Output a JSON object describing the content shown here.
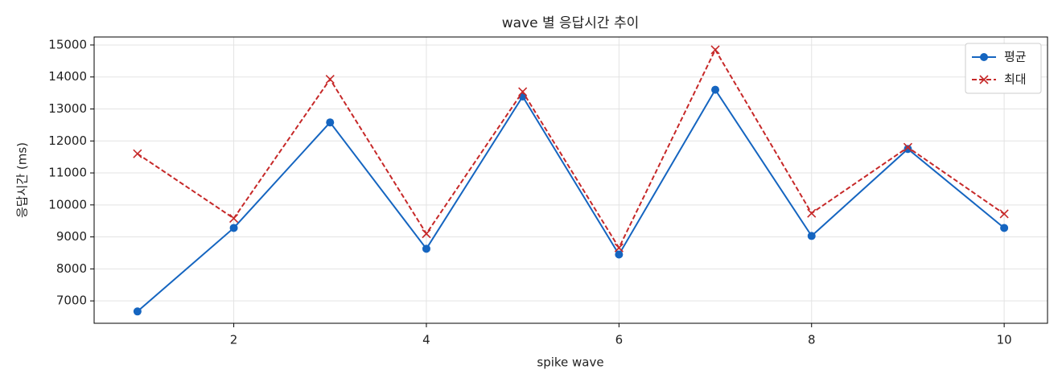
{
  "chart_data": {
    "type": "line",
    "title": "wave 별 응답시간 추이",
    "xlabel": "spike wave",
    "ylabel": "응답시간 (ms)",
    "x": [
      1,
      2,
      3,
      4,
      5,
      6,
      7,
      8,
      9,
      10
    ],
    "series": [
      {
        "name": "평균",
        "color": "#1565c0",
        "marker": "circle",
        "linestyle": "solid",
        "values": [
          6670,
          9280,
          12580,
          8630,
          13390,
          8450,
          13600,
          9030,
          11750,
          9280
        ]
      },
      {
        "name": "최대",
        "color": "#c62828",
        "marker": "x",
        "linestyle": "dashed",
        "values": [
          11600,
          9580,
          13930,
          9100,
          13540,
          8660,
          14850,
          9740,
          11800,
          9720
        ]
      }
    ],
    "xlim": [
      0.55,
      10.45
    ],
    "ylim": [
      6300,
      15250
    ],
    "xticks": [
      2,
      4,
      6,
      8,
      10
    ],
    "yticks": [
      7000,
      8000,
      9000,
      10000,
      11000,
      12000,
      13000,
      14000,
      15000
    ],
    "grid": true,
    "legend": "upper right"
  }
}
